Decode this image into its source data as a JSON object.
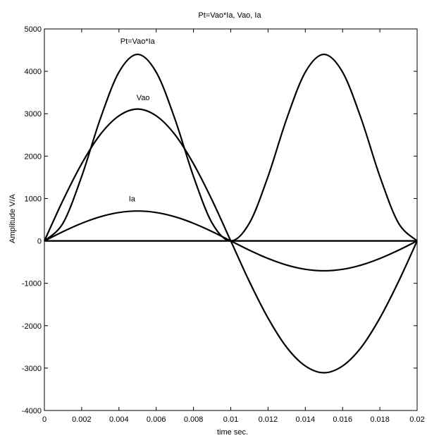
{
  "chart_data": {
    "type": "line",
    "title": "Pt=Vao*Ia,   Vao,    Ia",
    "xlabel": "time sec.",
    "ylabel": "Amplitude V/A",
    "xlim": [
      0,
      0.02
    ],
    "ylim": [
      -4000,
      5000
    ],
    "xticks": [
      0,
      0.002,
      0.004,
      0.006,
      0.008,
      0.01,
      0.012,
      0.014,
      0.016,
      0.018,
      0.02
    ],
    "xtick_labels": [
      "0",
      "0.002",
      "0.004",
      "0.006",
      "0.008",
      "0.01",
      "0.012",
      "0.014",
      "0.016",
      "0.018",
      "0.02"
    ],
    "yticks": [
      -4000,
      -3000,
      -2000,
      -1000,
      0,
      1000,
      2000,
      3000,
      4000,
      5000
    ],
    "ytick_labels": [
      "-4000",
      "-3000",
      "-2000",
      "-1000",
      "0",
      "1000",
      "2000",
      "3000",
      "4000",
      "5000"
    ],
    "grid": false,
    "line_color": "#000000",
    "series": [
      {
        "name": "Pt=Vao*Ia",
        "x": [
          0,
          0.001,
          0.002,
          0.003,
          0.004,
          0.005,
          0.006,
          0.007,
          0.008,
          0.009,
          0.01,
          0.011,
          0.012,
          0.013,
          0.014,
          0.015,
          0.016,
          0.017,
          0.018,
          0.019,
          0.02
        ],
        "values": [
          0,
          420,
          1520,
          2880,
          3980,
          4400,
          3980,
          2880,
          1520,
          420,
          0,
          420,
          1520,
          2880,
          3980,
          4400,
          3980,
          2880,
          1520,
          420,
          0
        ],
        "label_at": [
          0.005,
          4650
        ]
      },
      {
        "name": "Vao",
        "x": [
          0,
          0.001,
          0.002,
          0.003,
          0.004,
          0.005,
          0.006,
          0.007,
          0.008,
          0.009,
          0.01,
          0.011,
          0.012,
          0.013,
          0.014,
          0.015,
          0.016,
          0.017,
          0.018,
          0.019,
          0.02
        ],
        "values": [
          0,
          960,
          1820,
          2510,
          2950,
          3110,
          2950,
          2510,
          1820,
          960,
          0,
          -960,
          -1820,
          -2510,
          -2950,
          -3110,
          -2950,
          -2510,
          -1820,
          -960,
          0
        ],
        "label_at": [
          0.0053,
          3320
        ]
      },
      {
        "name": "Ia",
        "x": [
          0,
          0.001,
          0.002,
          0.003,
          0.004,
          0.005,
          0.006,
          0.007,
          0.008,
          0.009,
          0.01,
          0.011,
          0.012,
          0.013,
          0.014,
          0.015,
          0.016,
          0.017,
          0.018,
          0.019,
          0.02
        ],
        "values": [
          0,
          220,
          415,
          570,
          670,
          705,
          670,
          570,
          415,
          220,
          0,
          -220,
          -415,
          -570,
          -670,
          -705,
          -670,
          -570,
          -415,
          -220,
          0
        ],
        "label_at": [
          0.0047,
          930
        ]
      },
      {
        "name": "",
        "x": [
          0,
          0.02
        ],
        "values": [
          0,
          0
        ]
      }
    ]
  }
}
